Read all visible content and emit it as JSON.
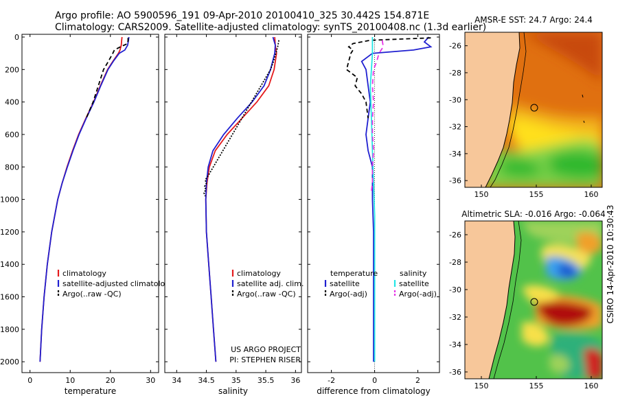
{
  "header": {
    "line1": "Argo profile: AO 5900596_191 09-Apr-2010 20100410_325 30.442S 154.871E",
    "line2": "Climatology: CARS2009. Satellite-adjusted climatology: synTS_20100408.nc (1.3d earlier)"
  },
  "colors": {
    "climatology": "#e41a1c",
    "satellite": "#1f1fd0",
    "argo": "#000000",
    "cyan": "#22e6e6",
    "magenta": "#e633e6",
    "land": "#f7c79a",
    "coast": "#000000"
  },
  "chart_data": [
    {
      "id": "temperature",
      "type": "line",
      "xlabel": "temperature",
      "ylabel": "",
      "xlim": [
        -2,
        32
      ],
      "ylim": [
        2050,
        0
      ],
      "xticks": [
        0,
        10,
        20,
        30
      ],
      "yticks": [
        0,
        200,
        400,
        600,
        800,
        1000,
        1200,
        1400,
        1600,
        1800,
        2000
      ],
      "legend": [
        "climatology",
        "satellite-adjusted climatology",
        "Argo(..raw -QC)"
      ],
      "legend_position": "lower-right",
      "series": [
        {
          "name": "climatology",
          "color": "#e41a1c",
          "dash": "",
          "depth": [
            0,
            20,
            50,
            80,
            100,
            150,
            200,
            300,
            400,
            500,
            600,
            700,
            800,
            900,
            1000,
            1200,
            1400,
            1600,
            1800,
            2000
          ],
          "values": [
            22.9,
            22.8,
            22.7,
            22.4,
            22.0,
            20.6,
            19.3,
            17.5,
            15.8,
            13.9,
            12.1,
            10.6,
            9.2,
            8.0,
            6.9,
            5.4,
            4.3,
            3.5,
            2.9,
            2.5
          ]
        },
        {
          "name": "satellite-adjusted climatology",
          "color": "#1f1fd0",
          "dash": "",
          "depth": [
            0,
            20,
            50,
            80,
            100,
            150,
            200,
            300,
            400,
            500,
            600,
            700,
            800,
            900,
            1000,
            1200,
            1400,
            1600,
            1800,
            2000
          ],
          "values": [
            24.6,
            24.5,
            24.3,
            23.6,
            22.2,
            20.7,
            19.4,
            17.6,
            15.9,
            14.0,
            12.2,
            10.7,
            9.3,
            8.0,
            6.9,
            5.4,
            4.3,
            3.5,
            2.9,
            2.5
          ]
        },
        {
          "name": "Argo(..raw -QC)",
          "color": "#000000",
          "dash": "6,4",
          "depth": [
            5,
            20,
            40,
            60,
            80,
            100,
            150,
            200,
            300,
            400,
            500
          ],
          "values": [
            24.4,
            24.4,
            24.3,
            22.5,
            21.0,
            20.6,
            19.5,
            18.3,
            17.0,
            15.7,
            14.0
          ]
        }
      ]
    },
    {
      "id": "salinity",
      "type": "line",
      "xlabel": "salinity",
      "ylabel": "",
      "xlim": [
        33.8,
        36.1
      ],
      "ylim": [
        2050,
        0
      ],
      "xticks": [
        34,
        34.5,
        35,
        35.5,
        36
      ],
      "yticks": [
        0,
        200,
        400,
        600,
        800,
        1000,
        1200,
        1400,
        1600,
        1800,
        2000
      ],
      "legend": [
        "climatology",
        "satellite adj. clim.",
        "Argo(..raw -QC)"
      ],
      "legend_position": "lower-right",
      "series": [
        {
          "name": "climatology",
          "color": "#e41a1c",
          "dash": "",
          "depth": [
            0,
            50,
            100,
            200,
            300,
            400,
            500,
            600,
            700,
            800,
            900,
            1000,
            1200,
            1400,
            1600,
            1800,
            2000
          ],
          "values": [
            35.65,
            35.66,
            35.68,
            35.64,
            35.55,
            35.35,
            35.1,
            34.85,
            34.65,
            34.55,
            34.51,
            34.49,
            34.5,
            34.54,
            34.58,
            34.62,
            34.66
          ]
        },
        {
          "name": "satellite adj. clim.",
          "color": "#1f1fd0",
          "dash": "",
          "depth": [
            0,
            50,
            100,
            200,
            300,
            400,
            500,
            600,
            700,
            800,
            900,
            1000,
            1200,
            1400,
            1600,
            1800,
            2000
          ],
          "values": [
            35.62,
            35.66,
            35.65,
            35.58,
            35.47,
            35.27,
            35.02,
            34.79,
            34.61,
            34.53,
            34.5,
            34.49,
            34.5,
            34.54,
            34.58,
            34.62,
            34.66
          ]
        },
        {
          "name": "Argo(..raw -QC)",
          "color": "#000000",
          "dash": "2,2",
          "depth": [
            20,
            60,
            100,
            150,
            200,
            860,
            880,
            900,
            920,
            940,
            960,
            980
          ],
          "values": [
            35.72,
            35.7,
            35.67,
            35.63,
            35.58,
            34.52,
            34.48,
            34.5,
            34.47,
            34.49,
            34.46,
            34.48
          ]
        }
      ],
      "annotations": [
        "US ARGO PROJECT",
        "PI: STEPHEN RISER"
      ]
    },
    {
      "id": "difference",
      "type": "line",
      "xlabel": "difference from climatology",
      "ylabel": "",
      "xlim": [
        -3.1,
        3.0
      ],
      "ylim": [
        2050,
        0
      ],
      "xticks": [
        -2,
        0,
        2
      ],
      "yticks": [
        0,
        200,
        400,
        600,
        800,
        1000,
        1200,
        1400,
        1600,
        1800,
        2000
      ],
      "legend": [
        "temperature",
        "satellite",
        "Argo(-adj)",
        "salinity",
        "satellite",
        "Argo(-adj)"
      ],
      "legend_position": "lower-center",
      "series": [
        {
          "name": "temperature satellite",
          "color": "#1f1fd0",
          "dash": "",
          "depth": [
            0,
            30,
            60,
            80,
            100,
            150,
            200,
            300,
            400,
            500,
            600,
            700,
            800,
            900,
            1000,
            1200,
            1400,
            1600,
            1800,
            2000
          ],
          "values": [
            2.5,
            2.3,
            2.6,
            1.8,
            -0.1,
            -0.6,
            -0.4,
            -0.3,
            -0.2,
            -0.3,
            -0.4,
            -0.3,
            -0.1,
            -0.1,
            -0.1,
            -0.05,
            -0.05,
            -0.05,
            -0.05,
            -0.05
          ]
        },
        {
          "name": "temperature Argo(-adj)",
          "color": "#000000",
          "dash": "6,4",
          "depth": [
            5,
            20,
            40,
            60,
            80,
            100,
            150,
            200,
            250,
            300,
            350,
            400,
            500
          ],
          "values": [
            2.6,
            -0.2,
            -1.0,
            -1.2,
            -1.0,
            -1.1,
            -1.2,
            -1.3,
            -0.8,
            -0.9,
            -0.6,
            -0.4,
            -0.3
          ]
        },
        {
          "name": "salinity satellite",
          "color": "#22e6e6",
          "dash": "",
          "depth": [
            0,
            100,
            200,
            300,
            500,
            700,
            900,
            1100,
            1400,
            1700,
            2000
          ],
          "values": [
            -0.1,
            -0.1,
            -0.15,
            -0.2,
            -0.15,
            -0.1,
            -0.05,
            0.0,
            0.0,
            0.0,
            0.0
          ]
        },
        {
          "name": "salinity Argo(-adj)",
          "color": "#e633e6",
          "dash": "7,5",
          "depth": [
            20,
            60,
            100,
            150,
            200,
            300,
            400,
            500,
            600,
            700,
            800,
            900,
            950
          ],
          "values": [
            0.35,
            0.4,
            0.2,
            0.1,
            -0.05,
            -0.1,
            -0.05,
            -0.1,
            -0.1,
            -0.05,
            -0.1,
            -0.1,
            -0.15
          ]
        }
      ]
    },
    {
      "id": "sst-map",
      "type": "heatmap",
      "title": "AMSR-E SST: 24.7 Argo: 24.4",
      "xlim": [
        148.5,
        161
      ],
      "ylim": [
        -36.5,
        -25
      ],
      "xticks": [
        150,
        155,
        160
      ],
      "yticks": [
        -26,
        -28,
        -30,
        -32,
        -34,
        -36
      ],
      "marker": {
        "lon": 154.871,
        "lat": -30.442
      }
    },
    {
      "id": "sla-map",
      "type": "heatmap",
      "title": "Altimetric SLA: -0.016 Argo: -0.064",
      "xlim": [
        148.5,
        161
      ],
      "ylim": [
        -36.5,
        -25
      ],
      "xticks": [
        150,
        155,
        160
      ],
      "yticks": [
        -26,
        -28,
        -30,
        -32,
        -34,
        -36
      ],
      "marker": {
        "lon": 154.871,
        "lat": -30.442
      }
    }
  ],
  "side_label": "CSIRO 14-Apr-2010 10:30:43"
}
